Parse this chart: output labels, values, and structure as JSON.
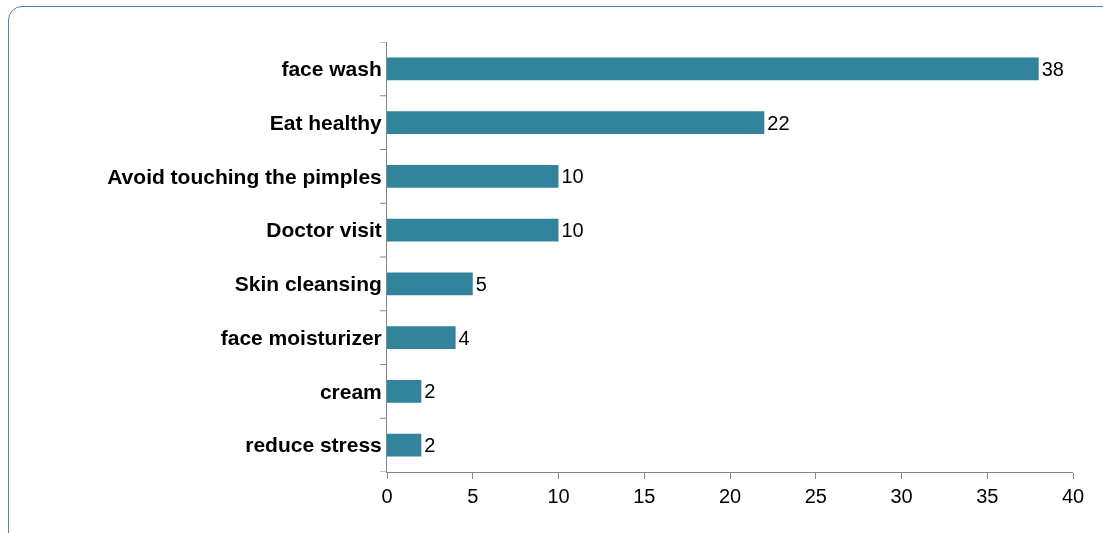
{
  "chart_data": {
    "type": "bar",
    "orientation": "horizontal",
    "categories": [
      "face wash",
      "Eat healthy",
      "Avoid touching the pimples",
      "Doctor visit",
      "Skin cleansing",
      "face moisturizer",
      "cream",
      "reduce stress"
    ],
    "values": [
      38,
      22,
      10,
      10,
      5,
      4,
      2,
      2
    ],
    "color": "#31849b",
    "xlim": [
      0,
      40
    ],
    "xticks": [
      0,
      5,
      10,
      15,
      20,
      25,
      30,
      35,
      40
    ],
    "grid": false,
    "data_labels": true,
    "legend": false
  }
}
